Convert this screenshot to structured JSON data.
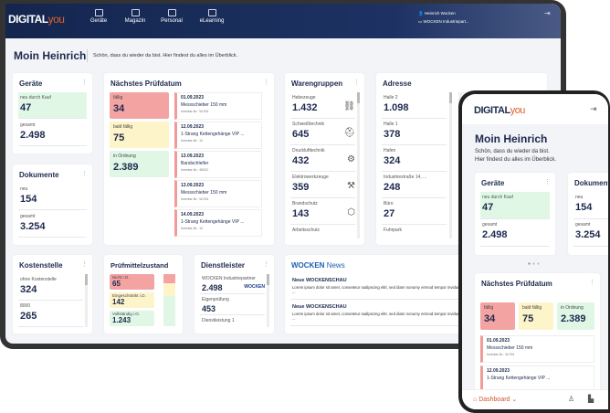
{
  "brand": {
    "logo_main": "DIGITAL",
    "logo_accent": "you",
    "accent": "#e0602a",
    "navy": "#14264f"
  },
  "nav": [
    {
      "label": "Geräte"
    },
    {
      "label": "Magazin"
    },
    {
      "label": "Personal"
    },
    {
      "label": "eLearning"
    }
  ],
  "user": {
    "name": "Heinrich Wocken",
    "company": "WOCKEN Industriepart..."
  },
  "greeting": {
    "title": "Moin Heinrich",
    "subtitle": "Schön, dass du wieder da bist. Hier findest du alles im Überblick.",
    "subtitle_line1": "Schön, dass du wieder da bist.",
    "subtitle_line2": "Hier findest du alles im Überblick."
  },
  "geraete": {
    "title": "Geräte",
    "new_label": "neu durch Kauf",
    "new_value": "47",
    "total_label": "gesamt",
    "total_value": "2.498"
  },
  "dokumente": {
    "title": "Dokumente",
    "new_label": "neu",
    "new_value": "154",
    "total_label": "gesamt",
    "total_value": "3.254"
  },
  "pruef": {
    "title": "Nächstes Prüfdatum",
    "due_label": "fällig",
    "due": "34",
    "soon_label": "bald fällig",
    "soon": "75",
    "ok_label": "in Ordnung",
    "ok": "2.389",
    "items": [
      {
        "date": "01.09.2023",
        "name": "Messschieber 150 mm",
        "inv": "Inventar-Nr.: W-001"
      },
      {
        "date": "12.09.2023",
        "name": "1-Strang Kettengehänge VIP ...",
        "inv": "Inventar-Nr.: 12"
      },
      {
        "date": "13.09.2023",
        "name": "Bandschleifer",
        "inv": "Inventar-Nr.: 45002"
      },
      {
        "date": "13.09.2023",
        "name": "Messschieber 150 mm",
        "inv": "Inventar-Nr.: W-001"
      },
      {
        "date": "14.09.2023",
        "name": "1-Strang Kettengehänge VIP ...",
        "inv": "Inventar-Nr.: 12"
      }
    ]
  },
  "waren": {
    "title": "Warengruppen",
    "items": [
      {
        "label": "Hebezeuge",
        "value": "1.432",
        "icon": "chain-icon"
      },
      {
        "label": "Schweißtechnik",
        "value": "645",
        "icon": "welding-mask-icon"
      },
      {
        "label": "Drucklufttechnik",
        "value": "432",
        "icon": "compressor-icon"
      },
      {
        "label": "Elektrowerkzeuge",
        "value": "359",
        "icon": "drill-icon"
      },
      {
        "label": "Brandschutz",
        "value": "143",
        "icon": "fire-shield-icon"
      },
      {
        "label": "Arbeitsschutz",
        "value": ""
      }
    ]
  },
  "adresse": {
    "title": "Adresse",
    "items": [
      {
        "label": "Halle 2",
        "value": "1.098"
      },
      {
        "label": "Halle 1",
        "value": "378"
      },
      {
        "label": "Hafen",
        "value": "324"
      },
      {
        "label": "Industriestraße 14, ...",
        "value": "248"
      },
      {
        "label": "Büro",
        "value": "27"
      },
      {
        "label": "Fuhrpark",
        "value": ""
      }
    ]
  },
  "kosten": {
    "title": "Kostenstelle",
    "items": [
      {
        "label": "ohne Kostenstelle",
        "value": "324"
      },
      {
        "label": "8000",
        "value": "265"
      }
    ]
  },
  "zustand": {
    "title": "Prüfmittelzustand",
    "items": [
      {
        "label": "Nicht i.O.",
        "value": "65"
      },
      {
        "label": "Eingeschränkt i.O.",
        "value": "142"
      },
      {
        "label": "Vollständig i.O.",
        "value": "1.243"
      }
    ]
  },
  "dienst": {
    "title": "Dienstleister",
    "items": [
      {
        "label": "WOCKEN Industriepartner",
        "value": "2.498",
        "logo": "WOCKEN"
      },
      {
        "label": "Eigenprüfung",
        "value": "453"
      },
      {
        "label": "Dienstleistung 1",
        "value": ""
      }
    ]
  },
  "news": {
    "title_brand": "WOCKEN",
    "title_rest": "News",
    "items": [
      {
        "headline": "Neue WOCKENSCHAU",
        "text": "Lorem ipsum dolor sit amet, consetetur sadipscing elitr, sed diam nonumy eirmod tempor invidunt ut labore et dolore magna aliquyam erat ..."
      },
      {
        "headline": "Neue WOCKENSCHAU",
        "text": "Lorem ipsum dolor sit amet, consetetur sadipscing elitr, sed diam nonumy eirmod tempor invidunt ut labore et dolore magna aliquyam erat ..."
      }
    ]
  },
  "phone_nav": {
    "dashboard": "Dashboard"
  }
}
